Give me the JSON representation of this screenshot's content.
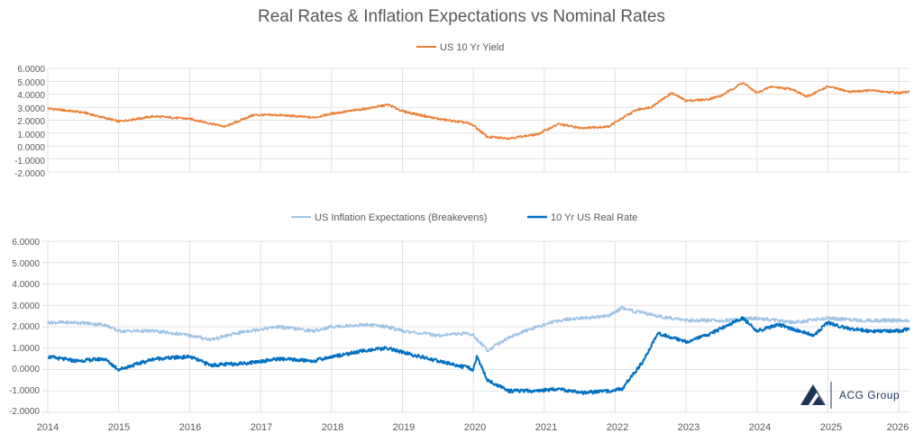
{
  "title": "Real Rates & Inflation Expectations vs Nominal Rates",
  "logo": {
    "text": "ACG Group"
  },
  "colors": {
    "nominal": "#ed7d31",
    "breakeven": "#9dc3e6",
    "real": "#0070c0",
    "grid": "#d9d9d9",
    "logo": "#1f3557"
  },
  "chart_data": [
    {
      "type": "line",
      "ylim": [
        -2,
        6
      ],
      "yticks": [
        "6.0000",
        "5.0000",
        "4.0000",
        "3.0000",
        "2.0000",
        "1.0000",
        "0.0000",
        "-1.0000",
        "-2.0000"
      ],
      "legend_position": "top-center",
      "series": [
        {
          "name": "US 10 Yr Yield",
          "x": [
            2014.0,
            2014.5,
            2015.0,
            2015.5,
            2016.0,
            2016.25,
            2016.5,
            2016.9,
            2017.25,
            2017.75,
            2018.0,
            2018.5,
            2018.8,
            2019.0,
            2019.5,
            2019.9,
            2020.0,
            2020.2,
            2020.5,
            2020.9,
            2021.2,
            2021.5,
            2021.9,
            2022.3,
            2022.5,
            2022.8,
            2023.0,
            2023.3,
            2023.5,
            2023.8,
            2024.0,
            2024.2,
            2024.5,
            2024.7,
            2025.0,
            2025.3,
            2025.6,
            2026.0,
            2026.15
          ],
          "y": [
            2.9,
            2.6,
            1.9,
            2.3,
            2.1,
            1.8,
            1.5,
            2.4,
            2.4,
            2.2,
            2.5,
            2.9,
            3.2,
            2.7,
            2.1,
            1.8,
            1.6,
            0.7,
            0.6,
            0.9,
            1.7,
            1.4,
            1.5,
            2.8,
            3.0,
            4.1,
            3.5,
            3.6,
            3.9,
            4.9,
            4.1,
            4.6,
            4.4,
            3.8,
            4.6,
            4.2,
            4.3,
            4.1,
            4.2
          ]
        }
      ]
    },
    {
      "type": "line",
      "ylim": [
        -2,
        6
      ],
      "yticks": [
        "6.0000",
        "5.0000",
        "4.0000",
        "3.0000",
        "2.0000",
        "1.0000",
        "0.0000",
        "-1.0000",
        "-2.0000"
      ],
      "xticks": [
        "2014",
        "2015",
        "2016",
        "2017",
        "2018",
        "2019",
        "2020",
        "2021",
        "2022",
        "2023",
        "2024",
        "2025",
        "2026"
      ],
      "legend_position": "top-center",
      "series": [
        {
          "name": "US Inflation Expectations (Breakevens)",
          "x": [
            2014.0,
            2014.4,
            2014.8,
            2015.0,
            2015.5,
            2016.0,
            2016.3,
            2016.8,
            2017.25,
            2017.75,
            2018.0,
            2018.5,
            2018.8,
            2019.0,
            2019.5,
            2019.9,
            2020.0,
            2020.2,
            2020.5,
            2020.9,
            2021.2,
            2021.5,
            2021.9,
            2022.1,
            2022.3,
            2022.6,
            2023.0,
            2023.5,
            2024.0,
            2024.5,
            2025.0,
            2025.5,
            2026.0,
            2026.15
          ],
          "y": [
            2.2,
            2.2,
            2.1,
            1.8,
            1.8,
            1.6,
            1.4,
            1.8,
            2.0,
            1.8,
            2.0,
            2.1,
            2.0,
            1.8,
            1.6,
            1.7,
            1.6,
            0.9,
            1.5,
            2.0,
            2.3,
            2.4,
            2.5,
            2.9,
            2.7,
            2.5,
            2.3,
            2.3,
            2.4,
            2.2,
            2.4,
            2.3,
            2.3,
            2.3
          ]
        },
        {
          "name": "10 Yr US Real Rate",
          "x": [
            2014.0,
            2014.4,
            2014.8,
            2015.0,
            2015.5,
            2016.0,
            2016.3,
            2016.8,
            2017.25,
            2017.75,
            2018.0,
            2018.5,
            2018.8,
            2019.0,
            2019.5,
            2019.9,
            2020.0,
            2020.05,
            2020.2,
            2020.5,
            2020.9,
            2021.2,
            2021.5,
            2021.9,
            2022.1,
            2022.4,
            2022.6,
            2022.8,
            2023.0,
            2023.3,
            2023.6,
            2023.8,
            2024.0,
            2024.3,
            2024.6,
            2024.8,
            2025.0,
            2025.3,
            2025.6,
            2026.0,
            2026.15
          ],
          "y": [
            0.6,
            0.4,
            0.5,
            0.0,
            0.5,
            0.6,
            0.2,
            0.3,
            0.5,
            0.4,
            0.6,
            0.9,
            1.0,
            0.8,
            0.4,
            0.1,
            0.0,
            0.6,
            -0.5,
            -1.0,
            -1.0,
            -0.9,
            -1.1,
            -1.0,
            -0.9,
            0.4,
            1.7,
            1.5,
            1.3,
            1.6,
            2.1,
            2.4,
            1.8,
            2.1,
            1.8,
            1.6,
            2.2,
            1.9,
            1.8,
            1.8,
            1.9
          ]
        }
      ]
    }
  ]
}
